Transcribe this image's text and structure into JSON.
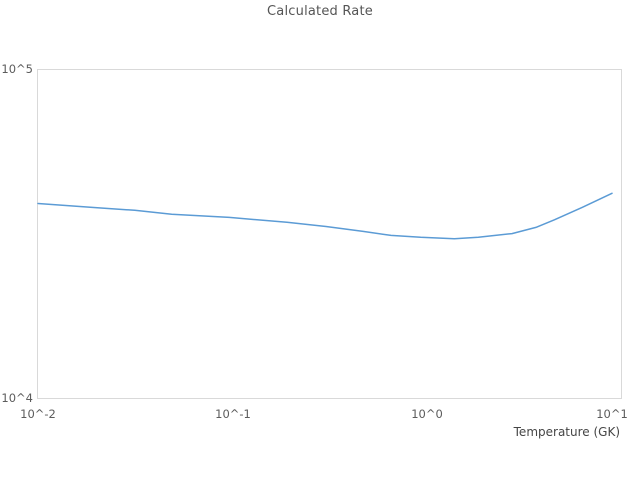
{
  "colors": {
    "background": "#ffffff",
    "plot_border": "#d9d9d9",
    "line": "#5b9bd5",
    "title_text": "#555555",
    "tick_text": "#5c5c5c",
    "axis_title_text": "#454545"
  },
  "chart_data": {
    "type": "line",
    "title": "Calculated Rate",
    "xlabel": "Temperature (GK)",
    "ylabel": "",
    "x_scale": "log",
    "y_scale": "log",
    "xlim": [
      0.01,
      10
    ],
    "ylim": [
      10000,
      100000
    ],
    "x_tick_labels": [
      "10^-2",
      "10^-1",
      "10^0",
      "10^1"
    ],
    "y_tick_labels": [
      "10^4",
      "10^5"
    ],
    "grid": false,
    "legend": false,
    "series": [
      {
        "name": "Calculated Rate",
        "color": "#5b9bd5",
        "x": [
          0.01,
          0.02,
          0.032,
          0.05,
          0.1,
          0.2,
          0.32,
          0.5,
          0.7,
          1.0,
          1.5,
          2.0,
          3.0,
          4.0,
          5.0,
          7.0,
          10.0
        ],
        "y": [
          39000,
          37900,
          37200,
          36200,
          35400,
          34200,
          33200,
          32100,
          31200,
          30800,
          30500,
          30800,
          31600,
          33000,
          34800,
          38000,
          41900
        ]
      }
    ]
  }
}
